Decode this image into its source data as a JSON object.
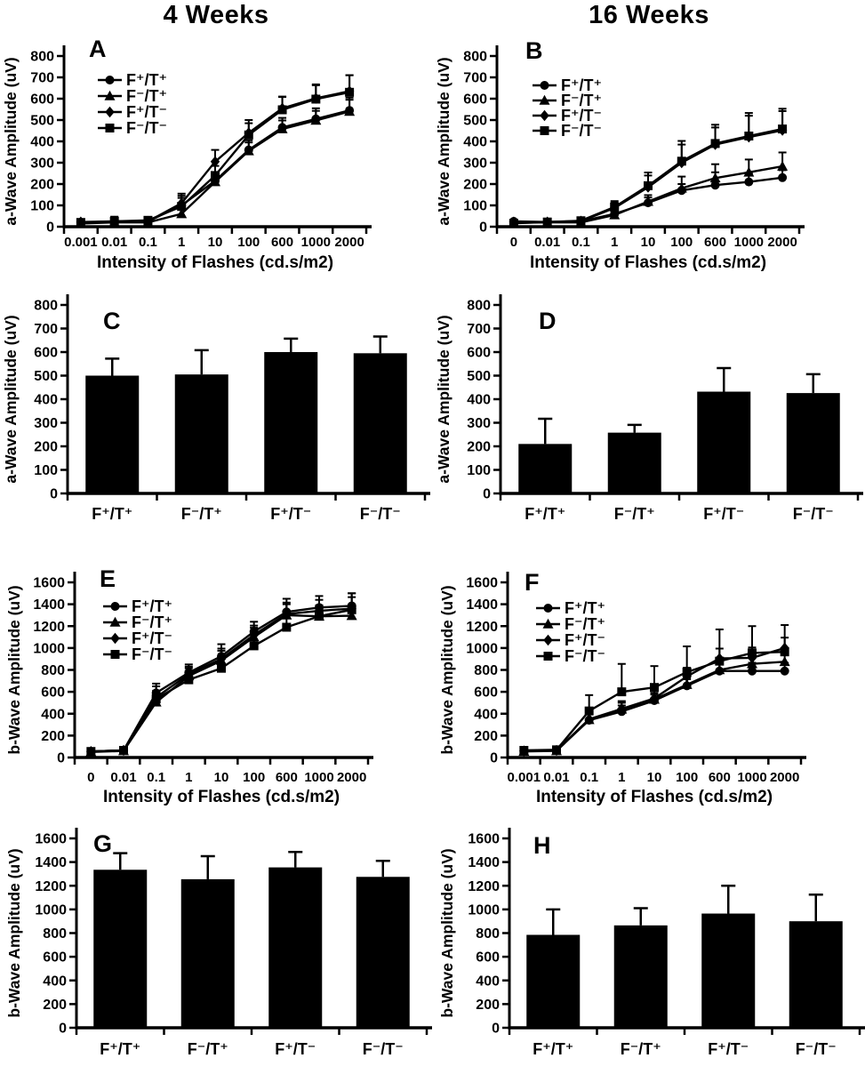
{
  "header": {
    "left_title": "4 Weeks",
    "right_title": "16 Weeks"
  },
  "colors": {
    "ink": "#000000",
    "background": "#ffffff"
  },
  "chart_data": [
    {
      "panel": "A",
      "type": "line",
      "column": "4 Weeks",
      "ylabel": "a-Wave Amplitude (uV)",
      "xlabel": "Intensity of Flashes (cd.s/m2)",
      "ylim": [
        0,
        800
      ],
      "yticks": [
        0,
        100,
        200,
        300,
        400,
        500,
        600,
        700,
        800
      ],
      "categories": [
        "0.001",
        "0.01",
        "0.1",
        "1",
        "10",
        "100",
        "600",
        "1000",
        "2000"
      ],
      "legend_position": "upper-left",
      "grid": false,
      "series": [
        {
          "name": "F⁺/T⁺",
          "marker": "circle",
          "values": [
            20,
            25,
            25,
            100,
            215,
            360,
            465,
            505,
            545
          ],
          "errors": [
            10,
            20,
            12,
            45,
            40,
            45,
            45,
            50,
            60
          ]
        },
        {
          "name": "F⁻/T⁺",
          "marker": "triangle",
          "values": [
            15,
            20,
            20,
            60,
            210,
            355,
            458,
            498,
            540
          ],
          "errors": [
            8,
            15,
            10,
            30,
            35,
            40,
            40,
            45,
            55
          ]
        },
        {
          "name": "F⁺/T⁻",
          "marker": "diamond",
          "values": [
            22,
            25,
            25,
            110,
            305,
            440,
            555,
            602,
            635
          ],
          "errors": [
            10,
            15,
            12,
            45,
            55,
            60,
            55,
            65,
            75
          ]
        },
        {
          "name": "F⁻/T⁻",
          "marker": "square",
          "values": [
            20,
            25,
            30,
            95,
            240,
            430,
            548,
            598,
            630
          ],
          "errors": [
            10,
            22,
            12,
            40,
            45,
            55,
            60,
            65,
            80
          ]
        }
      ]
    },
    {
      "panel": "B",
      "type": "line",
      "column": "16 Weeks",
      "ylabel": "a-Wave Amplitude (uV)",
      "xlabel": "Intensity of Flashes (cd.s/m2)",
      "ylim": [
        0,
        800
      ],
      "yticks": [
        0,
        100,
        200,
        300,
        400,
        500,
        600,
        700,
        800
      ],
      "categories": [
        "0",
        "0.01",
        "0.1",
        "1",
        "10",
        "100",
        "600",
        "1000",
        "2000"
      ],
      "legend_position": "upper-left",
      "grid": false,
      "series": [
        {
          "name": "F⁺/T⁺",
          "marker": "circle",
          "values": [
            25,
            22,
            25,
            60,
            112,
            170,
            195,
            210,
            230
          ],
          "errors": [
            8,
            6,
            6,
            20,
            25,
            30,
            60,
            40,
            35
          ]
        },
        {
          "name": "F⁻/T⁺",
          "marker": "triangle",
          "values": [
            18,
            20,
            20,
            55,
            118,
            180,
            228,
            255,
            283
          ],
          "errors": [
            6,
            6,
            6,
            15,
            30,
            55,
            65,
            60,
            65
          ]
        },
        {
          "name": "F⁺/T⁻",
          "marker": "diamond",
          "values": [
            22,
            22,
            26,
            88,
            185,
            300,
            385,
            420,
            452
          ],
          "errors": [
            8,
            6,
            8,
            25,
            55,
            85,
            80,
            100,
            90
          ]
        },
        {
          "name": "F⁻/T⁻",
          "marker": "square",
          "values": [
            16,
            22,
            28,
            92,
            192,
            307,
            390,
            425,
            458
          ],
          "errors": [
            6,
            6,
            8,
            28,
            62,
            95,
            88,
            108,
            95
          ]
        }
      ]
    },
    {
      "panel": "C",
      "type": "bar",
      "column": "4 Weeks",
      "ylabel": "a-Wave Amplitude (uV)",
      "ylim": [
        0,
        800
      ],
      "yticks": [
        0,
        100,
        200,
        300,
        400,
        500,
        600,
        700,
        800
      ],
      "categories": [
        "F⁺/T⁺",
        "F⁻/T⁺",
        "F⁺/T⁻",
        "F⁻/T⁻"
      ],
      "values": [
        500,
        505,
        600,
        595
      ],
      "errors": [
        72,
        103,
        57,
        71
      ],
      "bar_color": "#000000"
    },
    {
      "panel": "D",
      "type": "bar",
      "column": "16 Weeks",
      "ylabel": "a-Wave Amplitude (uV)",
      "ylim": [
        0,
        800
      ],
      "yticks": [
        0,
        100,
        200,
        300,
        400,
        500,
        600,
        700,
        800
      ],
      "categories": [
        "F⁺/T⁺",
        "F⁻/T⁺",
        "F⁺/T⁻",
        "F⁻/T⁻"
      ],
      "values": [
        210,
        258,
        432,
        426
      ],
      "errors": [
        107,
        33,
        100,
        80
      ],
      "bar_color": "#000000"
    },
    {
      "panel": "E",
      "type": "line",
      "column": "4 Weeks",
      "ylabel": "b-Wave Amplitude (uV)",
      "xlabel": "Intensity of Flashes (cd.s/m2)",
      "ylim": [
        0,
        1600
      ],
      "yticks": [
        0,
        200,
        400,
        600,
        800,
        1000,
        1200,
        1400,
        1600
      ],
      "categories": [
        "0",
        "0.01",
        "0.1",
        "1",
        "10",
        "100",
        "600",
        "1000",
        "2000"
      ],
      "legend_position": "upper-left",
      "grid": false,
      "series": [
        {
          "name": "F⁺/T⁺",
          "marker": "circle",
          "values": [
            55,
            65,
            590,
            775,
            925,
            1150,
            1330,
            1370,
            1385
          ],
          "errors": [
            15,
            15,
            60,
            75,
            110,
            90,
            120,
            105,
            115
          ]
        },
        {
          "name": "F⁻/T⁺",
          "marker": "triangle",
          "values": [
            50,
            60,
            505,
            745,
            885,
            1100,
            1300,
            1290,
            1295
          ],
          "errors": [
            12,
            12,
            55,
            70,
            90,
            85,
            100,
            95,
            100
          ]
        },
        {
          "name": "F⁺/T⁻",
          "marker": "diamond",
          "values": [
            55,
            65,
            550,
            760,
            900,
            1120,
            1310,
            1340,
            1360
          ],
          "errors": [
            14,
            14,
            60,
            70,
            95,
            85,
            105,
            100,
            105
          ]
        },
        {
          "name": "F⁻/T⁻",
          "marker": "square",
          "values": [
            55,
            65,
            535,
            710,
            815,
            1020,
            1190,
            1290,
            1350
          ],
          "errors": [
            15,
            15,
            140,
            80,
            100,
            95,
            110,
            100,
            150
          ]
        }
      ]
    },
    {
      "panel": "F",
      "type": "line",
      "column": "16 Weeks",
      "ylabel": "b-Wave Amplitude (uV)",
      "xlabel": "Intensity of Flashes (cd.s/m2)",
      "ylim": [
        0,
        1600
      ],
      "yticks": [
        0,
        200,
        400,
        600,
        800,
        1000,
        1200,
        1400,
        1600
      ],
      "categories": [
        "0.001",
        "0.01",
        "0.1",
        "1",
        "10",
        "100",
        "600",
        "1000",
        "2000"
      ],
      "legend_position": "upper-left",
      "grid": false,
      "series": [
        {
          "name": "F⁺/T⁺",
          "marker": "circle",
          "values": [
            60,
            65,
            340,
            420,
            520,
            655,
            790,
            790,
            790
          ],
          "errors": [
            12,
            12,
            55,
            55,
            55,
            60,
            75,
            75,
            75
          ]
        },
        {
          "name": "F⁻/T⁺",
          "marker": "triangle",
          "values": [
            55,
            60,
            345,
            440,
            530,
            665,
            800,
            855,
            875
          ],
          "errors": [
            10,
            10,
            60,
            60,
            60,
            65,
            80,
            80,
            85
          ]
        },
        {
          "name": "F⁺/T⁻",
          "marker": "diamond",
          "values": [
            60,
            65,
            350,
            445,
            540,
            740,
            905,
            910,
            1000
          ],
          "errors": [
            12,
            12,
            70,
            70,
            70,
            80,
            90,
            95,
            95
          ]
        },
        {
          "name": "F⁻/T⁻",
          "marker": "square",
          "values": [
            65,
            70,
            425,
            600,
            640,
            780,
            880,
            955,
            965
          ],
          "errors": [
            15,
            15,
            145,
            255,
            195,
            235,
            290,
            245,
            245
          ]
        }
      ]
    },
    {
      "panel": "G",
      "type": "bar",
      "column": "4 Weeks",
      "ylabel": "b-Wave Amplitude (uV)",
      "ylim": [
        0,
        1600
      ],
      "yticks": [
        0,
        200,
        400,
        600,
        800,
        1000,
        1200,
        1400,
        1600
      ],
      "categories": [
        "F⁺/T⁺",
        "F⁻/T⁺",
        "F⁺/T⁻",
        "F⁻/T⁻"
      ],
      "values": [
        1335,
        1255,
        1355,
        1275
      ],
      "errors": [
        140,
        195,
        130,
        135
      ],
      "bar_color": "#000000"
    },
    {
      "panel": "H",
      "type": "bar",
      "column": "16 Weeks",
      "ylabel": "b-Wave Amplitude (uV)",
      "ylim": [
        0,
        1600
      ],
      "yticks": [
        0,
        200,
        400,
        600,
        800,
        1000,
        1200,
        1400,
        1600
      ],
      "categories": [
        "F⁺/T⁺",
        "F⁻/T⁺",
        "F⁺/T⁻",
        "F⁻/T⁻"
      ],
      "values": [
        785,
        865,
        965,
        900
      ],
      "errors": [
        215,
        145,
        235,
        225
      ],
      "bar_color": "#000000"
    }
  ]
}
